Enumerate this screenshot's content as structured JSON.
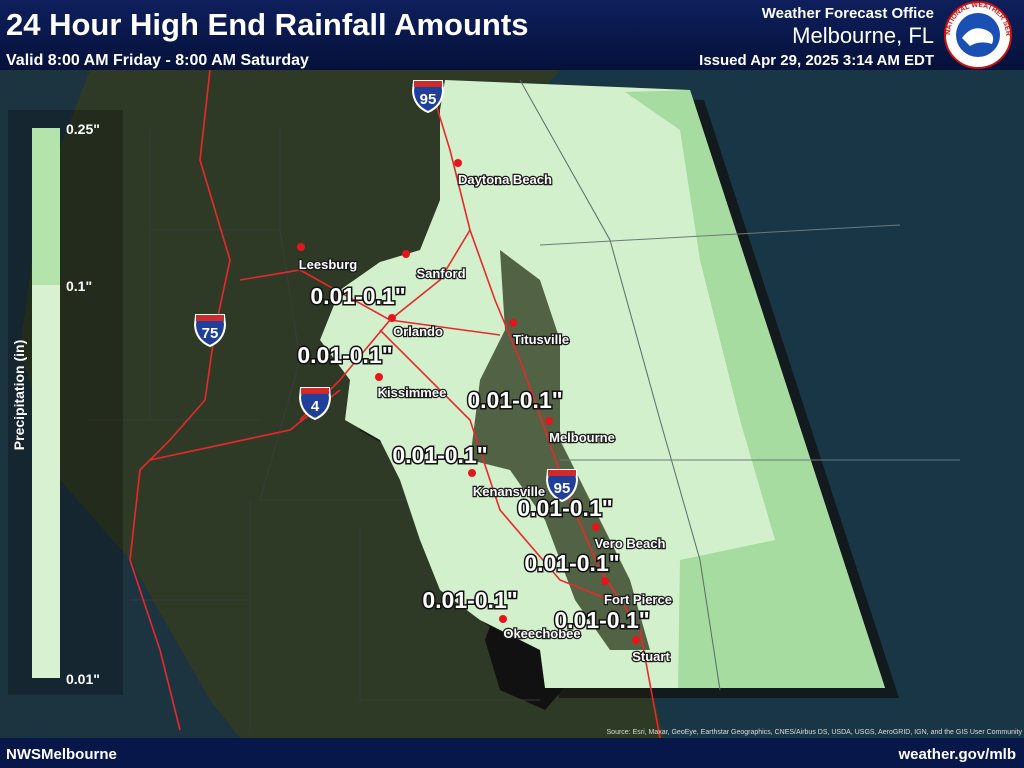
{
  "header": {
    "title": "24 Hour High End Rainfall Amounts",
    "valid": "Valid 8:00 AM Friday - 8:00 AM Saturday",
    "office": "Weather Forecast Office",
    "location": "Melbourne, FL",
    "issued": "Issued Apr 29, 2025 3:14 AM EDT",
    "logo_text": "NATIONAL WEATHER SERVICE"
  },
  "legend": {
    "title": "Precipitation (in)",
    "labels": [
      "0.25\"",
      "0.1\"",
      "0.01\""
    ]
  },
  "cities": [
    "Daytona Beach",
    "Leesburg",
    "Sanford",
    "Orlando",
    "Titusville",
    "Kissimmee",
    "Melbourne",
    "Kenansville",
    "Vero Beach",
    "Fort Pierce",
    "Okeechobee",
    "Stuart"
  ],
  "amount_labels": [
    "0.01-0.1\"",
    "0.01-0.1\"",
    "0.01-0.1\"",
    "0.01-0.1\"",
    "0.01-0.1\"",
    "0.01-0.1\"",
    "0.01-0.1\"",
    "0.01-0.1\""
  ],
  "interstates": [
    "95",
    "75",
    "4",
    "95"
  ],
  "footer": {
    "left": "NWSMelbourne",
    "right": "weather.gov/mlb",
    "source": "Source: Esri, Maxar, GeoEye, Earthstar Geographics, CNES/Airbus DS, USDA, USGS, AeroGRID, IGN, and the GIS User Community"
  }
}
